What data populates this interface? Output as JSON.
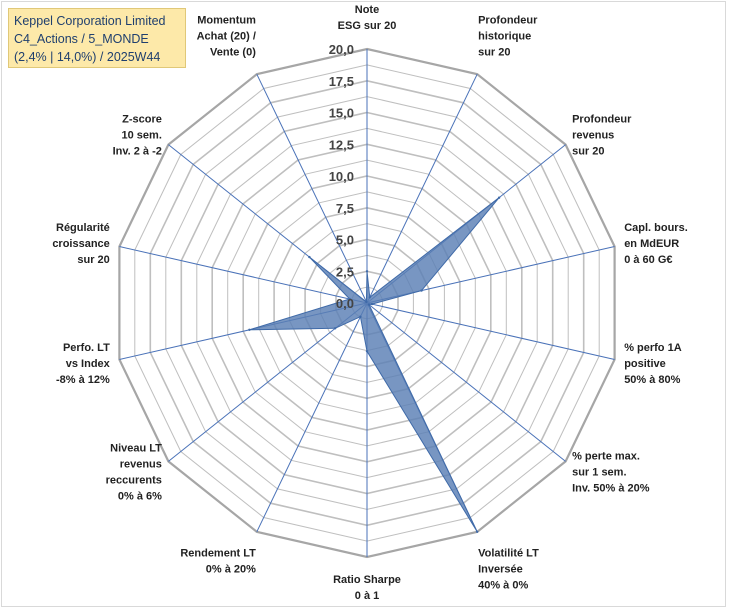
{
  "title_box": {
    "line1": "Keppel Corporation Limited",
    "line2": "C4_Actions / 5_MONDE",
    "line3": "(2,4% | 14,0%) / 2025W44"
  },
  "chart_data": {
    "type": "radar",
    "title": "Keppel Corporation Limited",
    "r_range": [
      0,
      20
    ],
    "ticks": [
      "0,0",
      "2,5",
      "5,0",
      "7,5",
      "10,0",
      "12,5",
      "15,0",
      "17,5",
      "20,0"
    ],
    "axes": [
      {
        "name": "Note ESG sur 20",
        "lines": [
          "Note",
          "ESG sur 20"
        ],
        "value": 2.5
      },
      {
        "name": "Profondeur historique sur 20",
        "lines": [
          "Profondeur",
          "historique",
          "sur 20"
        ],
        "value": 0.5
      },
      {
        "name": "Profondeur revenus sur 20",
        "lines": [
          "Profondeur",
          "revenus",
          "sur 20"
        ],
        "value": 13.3
      },
      {
        "name": "Capl. bours. en MdEUR 0 à 60 G€",
        "lines": [
          "Capl. bours.",
          "en MdEUR",
          "0 à 60 G€"
        ],
        "value": 4.4
      },
      {
        "name": "% perfo 1A positive 50% à 80%",
        "lines": [
          "% perfo 1A",
          "positive",
          "50% à 80%"
        ],
        "value": 0.4
      },
      {
        "name": "% perte max. sur 1 sem. Inv. 50% à 20%",
        "lines": [
          "% perte max.",
          "sur 1 sem.",
          "Inv. 50% à 20%"
        ],
        "value": 0.2
      },
      {
        "name": "Volatilité LT Inversée 40% à 0%",
        "lines": [
          "Volatilité LT",
          "Inversée",
          "40% à 0%"
        ],
        "value": 20.0
      },
      {
        "name": "Ratio Sharpe 0 à 1",
        "lines": [
          "Ratio Sharpe",
          "0 à 1"
        ],
        "value": 3.8
      },
      {
        "name": "Rendement LT 0% à 20%",
        "lines": [
          "Rendement LT",
          "0% à 20%"
        ],
        "value": 1.2
      },
      {
        "name": "Niveau LT revenus reccurents 0% à 6%",
        "lines": [
          "Niveau LT",
          "revenus",
          "reccurents",
          "0% à 6%"
        ],
        "value": 3.2
      },
      {
        "name": "Perfo. LT vs Index -8% à 12%",
        "lines": [
          "Perfo. LT",
          "vs Index",
          "-8% à 12%"
        ],
        "value": 9.5
      },
      {
        "name": "Régularité croissance sur 20",
        "lines": [
          "Régularité",
          "croissance",
          "sur 20"
        ],
        "value": 1.4
      },
      {
        "name": "Z-score 10 sem. Inv. 2 à -2",
        "lines": [
          "Z-score",
          "10 sem.",
          "Inv. 2 à -2"
        ],
        "value": 5.8
      },
      {
        "name": "Momentum Achat (20) / Vente (0)",
        "lines": [
          "Momentum",
          "Achat (20) /",
          "Vente (0)"
        ],
        "value": 0.1
      }
    ],
    "colors": {
      "fill": "#5a7fb5",
      "stroke": "#3f6aa8",
      "axis": "#4a72b8",
      "grid": "#bfbfbf",
      "grid_outer": "#a6a6a6"
    }
  }
}
